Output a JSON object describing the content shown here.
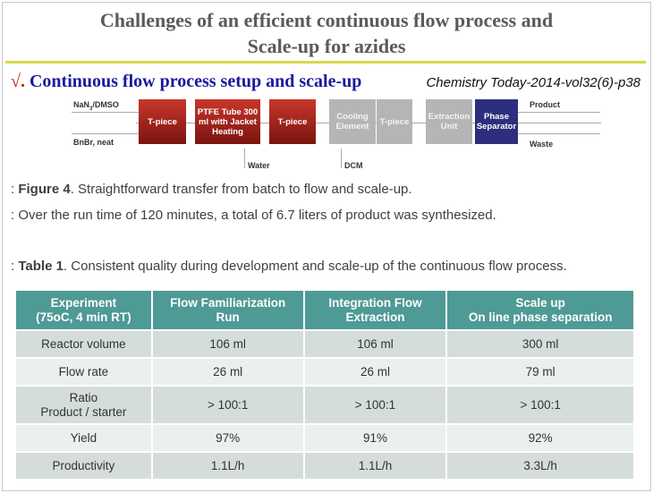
{
  "title_line1": "Challenges of an efficient continuous flow process and",
  "title_line2": "Scale-up for azides",
  "subtitle_check": "√.",
  "subtitle": "Continuous flow process setup and scale-up",
  "citation": "Chemistry Today-2014-vol32(6)-p38",
  "diagram": {
    "input1": "NaN3/DMSO",
    "input2": "BnBr, neat",
    "boxes": [
      "T-piece",
      "PTFE Tube 300 ml with Jacket Heating",
      "T-piece",
      "Cooling Element",
      "T-piece",
      "Extraction Unit",
      "Phase Separator"
    ],
    "water": "Water",
    "dcm": "DCM",
    "product": "Product",
    "waste": "Waste"
  },
  "figure_caption": {
    "prefix": ": ",
    "label": "Figure 4",
    "text": ". Straightforward transfer from batch to flow and scale-up."
  },
  "run_note": ": Over the run time of 120 minutes, a total of 6.7 liters of product was synthesized.",
  "table_caption": {
    "prefix": ": ",
    "label": "Table 1",
    "text": ". Consistent quality during development and scale-up of the continuous flow process."
  },
  "table": {
    "headers": [
      [
        "Experiment",
        "(75oC, 4 min RT)"
      ],
      [
        "Flow Familiarization",
        "Run"
      ],
      [
        "Integration Flow",
        "Extraction"
      ],
      [
        "Scale up",
        "On line phase separation"
      ]
    ],
    "rows": [
      [
        "Reactor volume",
        "106 ml",
        "106 ml",
        "300 ml"
      ],
      [
        "Flow rate",
        "26 ml",
        "26 ml",
        "79 ml"
      ],
      [
        "Ratio\nProduct / starter",
        "> 100:1",
        "> 100:1",
        "> 100:1"
      ],
      [
        "Yield",
        "97%",
        "91%",
        "92%"
      ],
      [
        "Productivity",
        "1.1L/h",
        "1.1L/h",
        "3.3L/h"
      ]
    ]
  },
  "colors": {
    "header": "#4e9a95",
    "accent_line": "#d8d84a",
    "subtitle": "#1a1a9c"
  }
}
